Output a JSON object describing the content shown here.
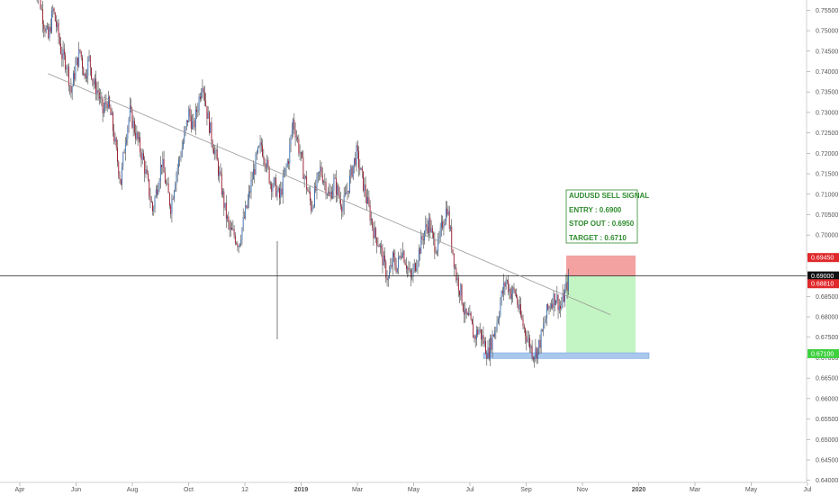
{
  "chart_data": {
    "type": "candlestick",
    "instrument": "AUDUSD",
    "ylim": [
      0.6395,
      0.7575
    ],
    "yticks": [
      "0.75500",
      "0.75000",
      "0.74500",
      "0.74000",
      "0.73500",
      "0.73000",
      "0.72500",
      "0.72000",
      "0.71500",
      "0.71000",
      "0.70500",
      "0.70000",
      "0.69500",
      "0.69000",
      "0.68500",
      "0.68000",
      "0.67500",
      "0.67000",
      "0.66500",
      "0.66000",
      "0.65500",
      "0.65000",
      "0.64500",
      "0.64000"
    ],
    "xticks": [
      "Apr",
      "Jun",
      "Aug",
      "Oct",
      "12",
      "2019",
      "Mar",
      "May",
      "Jul",
      "Sep",
      "Nov",
      "2020",
      "Mar",
      "May",
      "Jul"
    ],
    "price_labels": [
      {
        "text": "0.69450",
        "value": 0.6945,
        "color": "#e0292b"
      },
      {
        "text": "0.69000",
        "value": 0.69,
        "color": "#111111"
      },
      {
        "text": "0.68810",
        "value": 0.6881,
        "color": "#e0292b"
      },
      {
        "text": "0.67100",
        "value": 0.671,
        "color": "#3fd03f"
      }
    ],
    "horizontal_line": 0.69,
    "trendline": {
      "from": [
        "May 2018",
        0.7395
      ],
      "to": [
        "Jan 2020",
        0.6805
      ]
    },
    "stop_zone": [
      0.69,
      0.695
    ],
    "target_zone": [
      0.671,
      0.69
    ],
    "support_zone": [
      0.6698,
      0.6712
    ],
    "path": [
      0.762,
      0.758,
      0.752,
      0.748,
      0.755,
      0.75,
      0.744,
      0.742,
      0.735,
      0.741,
      0.745,
      0.739,
      0.743,
      0.737,
      0.735,
      0.73,
      0.733,
      0.728,
      0.72,
      0.713,
      0.724,
      0.73,
      0.726,
      0.722,
      0.718,
      0.712,
      0.706,
      0.712,
      0.718,
      0.712,
      0.707,
      0.714,
      0.719,
      0.724,
      0.73,
      0.726,
      0.732,
      0.738,
      0.73,
      0.724,
      0.719,
      0.713,
      0.706,
      0.701,
      0.7,
      0.698,
      0.703,
      0.708,
      0.714,
      0.719,
      0.722,
      0.718,
      0.713,
      0.712,
      0.709,
      0.714,
      0.719,
      0.728,
      0.723,
      0.717,
      0.712,
      0.707,
      0.711,
      0.716,
      0.713,
      0.709,
      0.713,
      0.71,
      0.707,
      0.711,
      0.716,
      0.72,
      0.715,
      0.71,
      0.705,
      0.7,
      0.698,
      0.693,
      0.689,
      0.694,
      0.692,
      0.697,
      0.693,
      0.689,
      0.693,
      0.697,
      0.701,
      0.703,
      0.698,
      0.697,
      0.703,
      0.707,
      0.698,
      0.69,
      0.686,
      0.68,
      0.679,
      0.675,
      0.677,
      0.674,
      0.671,
      0.675,
      0.679,
      0.685,
      0.689,
      0.686,
      0.686,
      0.681,
      0.677,
      0.674,
      0.671,
      0.672,
      0.676,
      0.681,
      0.684,
      0.685,
      0.682,
      0.686,
      0.69
    ]
  },
  "annotation": {
    "title": "AUDUSD SELL SIGNAL",
    "entry": "ENTRY : 0.6900",
    "stop": "STOP OUT : 0.6950",
    "target": "TARGET : 0.6710",
    "color": "#2e8b2e"
  },
  "colors": {
    "up": "#3b6fb6",
    "down": "#a0152b",
    "wick": "#444444",
    "stop_zone": "#f29090",
    "target_zone": "#b9f2b9",
    "support_zone": "#aac8ee",
    "trendline": "#999999"
  }
}
